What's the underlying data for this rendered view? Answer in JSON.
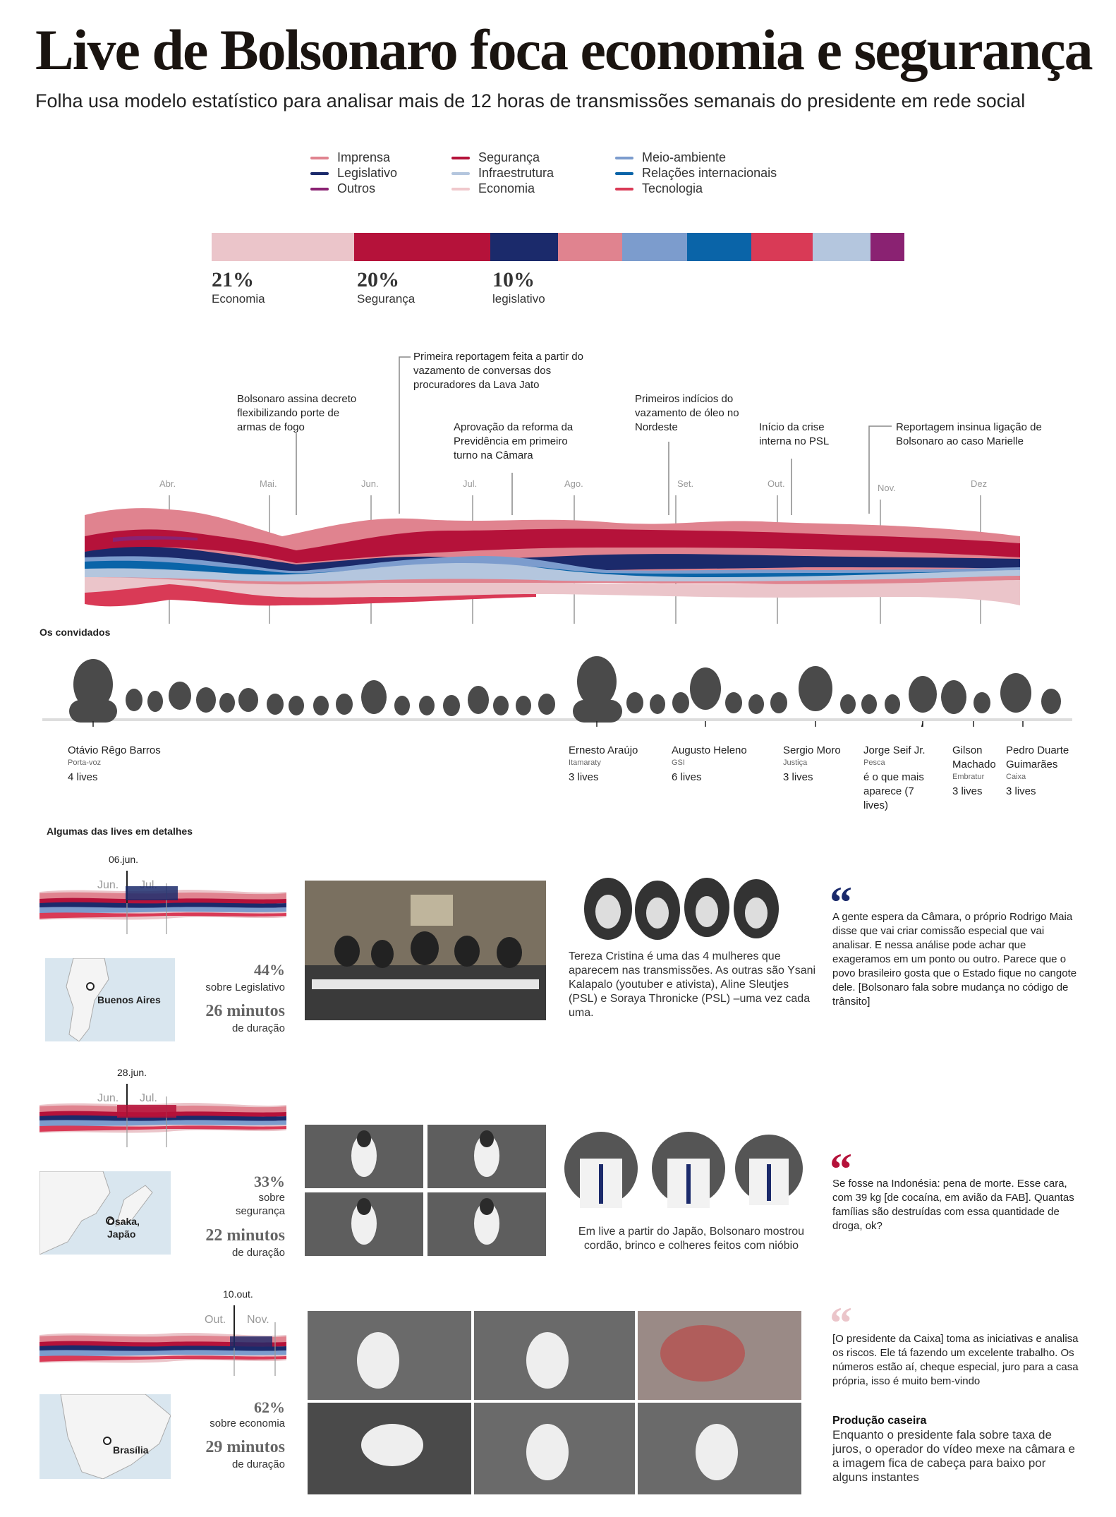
{
  "title": "Live de Bolsonaro foca economia e segurança",
  "subtitle": "Folha usa modelo estatístico para analisar mais de 12 horas de transmissões semanais do presidente em rede social",
  "legend": [
    {
      "label": "Imprensa",
      "color": "#e0838f"
    },
    {
      "label": "Legislativo",
      "color": "#1b2a6b"
    },
    {
      "label": "Outros",
      "color": "#8a2272"
    },
    {
      "label": "Segurança",
      "color": "#b5123a"
    },
    {
      "label": "Infraestrutura",
      "color": "#b4c6de"
    },
    {
      "label": "Economia",
      "color": "#f0c8cc"
    },
    {
      "label": "Meio-ambiente",
      "color": "#7c9ccd"
    },
    {
      "label": "Relações internacionais",
      "color": "#0a64a8"
    },
    {
      "label": "Tecnologia",
      "color": "#d93a56"
    }
  ],
  "share_bar": [
    {
      "topic": "Economia",
      "value": 21,
      "color": "#ebc5ca"
    },
    {
      "topic": "Segurança",
      "value": 20,
      "color": "#b5123a"
    },
    {
      "topic": "Legislativo",
      "value": 10,
      "color": "#1b2a6b"
    },
    {
      "topic": "Imprensa",
      "value": 9.5,
      "color": "#e0838f"
    },
    {
      "topic": "Meio-ambiente",
      "value": 9.5,
      "color": "#7c9ccd"
    },
    {
      "topic": "Relações internacionais",
      "value": 9.5,
      "color": "#0a64a8"
    },
    {
      "topic": "Tecnologia",
      "value": 9,
      "color": "#d93a56"
    },
    {
      "topic": "Infraestrutura",
      "value": 8.5,
      "color": "#b4c6de"
    },
    {
      "topic": "Outros",
      "value": 5,
      "color": "#8a2272"
    }
  ],
  "share_labels": [
    {
      "pct": "21%",
      "label": "Economia"
    },
    {
      "pct": "20%",
      "label": "Segurança"
    },
    {
      "pct": "10%",
      "label": "legislativo"
    }
  ],
  "timeline": {
    "months": [
      "Abr.",
      "Mai.",
      "Jun.",
      "Jul.",
      "Ago.",
      "Set.",
      "Out.",
      "Nov.",
      "Dez"
    ],
    "annotations": [
      "Bolsonaro assina decreto flexibilizando porte de armas de fogo",
      "Primeira reportagem feita a partir do vazamento de conversas dos procuradores da Lava Jato",
      "Aprovação da reforma da Previdência em primeiro turno na Câmara",
      "Primeiros indícios do vazamento de óleo no Nordeste",
      "Início da crise interna no PSL",
      "Reportagem insinua ligação de Bolsonaro ao caso Marielle"
    ]
  },
  "guests_heading": "Os convidados",
  "guests": [
    {
      "name": "Otávio Rêgo Barros",
      "role": "Porta-voz",
      "lives": "4 lives"
    },
    {
      "name": "Ernesto Araújo",
      "role": "Itamaraty",
      "lives": "3 lives"
    },
    {
      "name": "Augusto Heleno",
      "role": "GSI",
      "lives": "6 lives"
    },
    {
      "name": "Sergio Moro",
      "role": "Justiça",
      "lives": "3 lives"
    },
    {
      "name": "Jorge Seif Jr.",
      "role": "Pesca",
      "lives": "é o que mais aparece (7 lives)"
    },
    {
      "name": "Gilson Machado",
      "role": "Embratur",
      "lives": "3 lives"
    },
    {
      "name": "Pedro Duarte Guimarães",
      "role": "Caixa",
      "lives": "3 lives"
    }
  ],
  "details_heading": "Algumas das lives em detalhes",
  "details": [
    {
      "date": "06.jun.",
      "months": [
        "Jun.",
        "Jul."
      ],
      "place": "Buenos Aires",
      "pct": "44%",
      "topic": "sobre Legislativo",
      "minutes": "26 minutos",
      "duration": "de duração",
      "caption": "Tereza Cristina é uma das 4 mulheres que aparecem nas transmissões. As outras são Ysani Kalapalo (youtuber e ativista), Aline Sleutjes (PSL) e Soraya Thronicke (PSL) –uma vez cada uma.",
      "quote": "A gente espera da Câmara, o próprio Rodrigo Maia disse que vai criar comissão especial que vai analisar. E nessa análise pode achar que exageramos em um ponto ou outro. Parece que o povo brasileiro gosta que o Estado fique no cangote dele. [Bolsonaro fala sobre mudança no código de trânsito]",
      "quote_color": "#1b2a6b"
    },
    {
      "date": "28.jun.",
      "months": [
        "Jun.",
        "Jul."
      ],
      "place": "Osaka, Japão",
      "pct": "33%",
      "topic": "sobre segurança",
      "minutes": "22 minutos",
      "duration": "de duração",
      "caption": "Em live a partir do Japão, Bolsonaro mostrou cordão, brinco e colheres feitos com nióbio",
      "quote": "Se fosse na Indonésia: pena de morte. Esse cara, com 39 kg [de cocaína, em avião da FAB]. Quantas famílias são destruídas com essa quantidade de droga, ok?",
      "quote_color": "#b5123a"
    },
    {
      "date": "10.out.",
      "months": [
        "Out.",
        "Nov."
      ],
      "place": "Brasília",
      "pct": "62%",
      "topic": "sobre economia",
      "minutes": "29 minutos",
      "duration": "de duração",
      "quote": "[O presidente da Caixa] toma as iniciativas e analisa os riscos. Ele tá fazendo um excelente trabalho. Os números estão aí, cheque especial, juro para a casa própria, isso é muito bem-vindo",
      "quote_color": "#ebc5ca",
      "extra_title": "Produção caseira",
      "extra_text": "Enquanto o presidente fala sobre taxa de juros, o operador do vídeo mexe na câmara e a imagem fica de cabeça para baixo por alguns instantes"
    }
  ]
}
